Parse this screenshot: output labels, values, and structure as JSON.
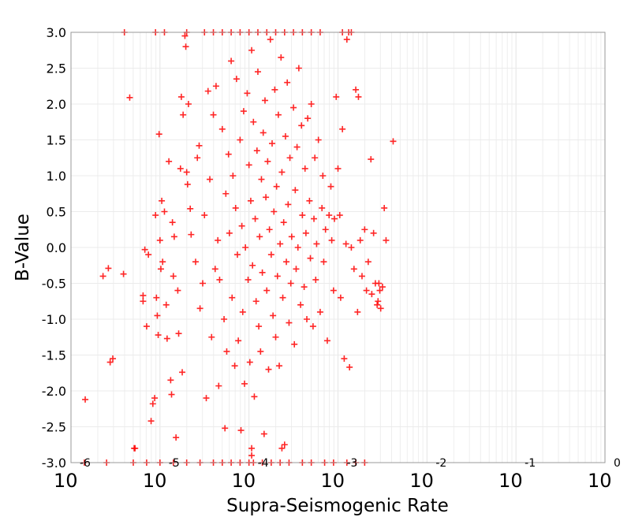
{
  "chart_data": {
    "type": "scatter",
    "xlabel": "Supra-Seismogenic Rate",
    "ylabel": "B-Value",
    "xscale": "log",
    "xlim": [
      1e-06,
      1
    ],
    "ylim": [
      -3.0,
      3.0
    ],
    "grid": true,
    "x_tick_exponents": [
      "-6",
      "-5",
      "-4",
      "-3",
      "-2",
      "-1",
      "0"
    ],
    "x_tick_base": "10",
    "y_ticks": [
      "3.0",
      "2.5",
      "2.0",
      "1.5",
      "1.0",
      "0.5",
      "0.0",
      "-0.5",
      "-1.0",
      "-1.5",
      "-2.0",
      "-2.5",
      "-3.0"
    ],
    "marker": "plus",
    "color": "#ff0000",
    "series": [
      {
        "name": "points",
        "note": "points given as [log10(x), y]",
        "points": [
          [
            -5.84,
            -2.12
          ],
          [
            -5.64,
            -0.4
          ],
          [
            -5.58,
            -0.29
          ],
          [
            -5.56,
            -1.6
          ],
          [
            -5.53,
            -1.55
          ],
          [
            -5.41,
            -0.37
          ],
          [
            -5.34,
            2.09
          ],
          [
            -5.28,
            -2.8
          ],
          [
            -5.19,
            -0.67
          ],
          [
            -5.19,
            -0.75
          ],
          [
            -5.17,
            -0.03
          ],
          [
            -5.15,
            -1.1
          ],
          [
            -5.13,
            -0.1
          ],
          [
            -5.1,
            -2.42
          ],
          [
            -5.08,
            -2.18
          ],
          [
            -5.06,
            -2.1
          ],
          [
            -5.05,
            0.45
          ],
          [
            -5.04,
            -0.7
          ],
          [
            -5.03,
            -0.95
          ],
          [
            -5.02,
            -1.22
          ],
          [
            -5.01,
            1.58
          ],
          [
            -5.0,
            0.1
          ],
          [
            -4.99,
            -0.3
          ],
          [
            -4.98,
            0.65
          ],
          [
            -4.97,
            -0.2
          ],
          [
            -4.95,
            0.5
          ],
          [
            -4.93,
            -0.8
          ],
          [
            -4.92,
            -1.27
          ],
          [
            -4.9,
            1.2
          ],
          [
            -4.88,
            -1.85
          ],
          [
            -4.87,
            -2.05
          ],
          [
            -4.86,
            0.35
          ],
          [
            -4.85,
            -0.4
          ],
          [
            -4.84,
            0.15
          ],
          [
            -4.82,
            -2.65
          ],
          [
            -4.8,
            -0.6
          ],
          [
            -4.79,
            -1.2
          ],
          [
            -4.77,
            1.1
          ],
          [
            -4.76,
            2.1
          ],
          [
            -4.75,
            -1.74
          ],
          [
            -4.74,
            1.85
          ],
          [
            -4.72,
            2.95
          ],
          [
            -4.71,
            2.8
          ],
          [
            -4.7,
            1.05
          ],
          [
            -4.69,
            0.88
          ],
          [
            -4.68,
            2.0
          ],
          [
            -4.66,
            0.54
          ],
          [
            -4.65,
            0.18
          ],
          [
            -4.6,
            -0.2
          ],
          [
            -4.58,
            1.25
          ],
          [
            -4.56,
            1.42
          ],
          [
            -4.55,
            -0.85
          ],
          [
            -4.52,
            -0.5
          ],
          [
            -4.5,
            0.45
          ],
          [
            -4.48,
            -2.1
          ],
          [
            -4.46,
            2.18
          ],
          [
            -4.44,
            0.95
          ],
          [
            -4.42,
            -1.25
          ],
          [
            -4.4,
            1.85
          ],
          [
            -4.38,
            -0.3
          ],
          [
            -4.37,
            2.25
          ],
          [
            -4.35,
            0.1
          ],
          [
            -4.34,
            -1.93
          ],
          [
            -4.33,
            -0.45
          ],
          [
            -4.3,
            1.65
          ],
          [
            -4.28,
            -1.0
          ],
          [
            -4.27,
            -2.52
          ],
          [
            -4.26,
            0.75
          ],
          [
            -4.25,
            -1.45
          ],
          [
            -4.23,
            1.3
          ],
          [
            -4.22,
            0.2
          ],
          [
            -4.2,
            2.6
          ],
          [
            -4.19,
            -0.7
          ],
          [
            -4.18,
            1.0
          ],
          [
            -4.16,
            -1.65
          ],
          [
            -4.15,
            0.55
          ],
          [
            -4.14,
            2.35
          ],
          [
            -4.13,
            -0.1
          ],
          [
            -4.12,
            -1.3
          ],
          [
            -4.1,
            1.5
          ],
          [
            -4.09,
            -2.55
          ],
          [
            -4.08,
            0.3
          ],
          [
            -4.07,
            -0.9
          ],
          [
            -4.06,
            1.9
          ],
          [
            -4.05,
            -1.9
          ],
          [
            -4.04,
            0.0
          ],
          [
            -4.02,
            2.15
          ],
          [
            -4.01,
            -0.45
          ],
          [
            -4.0,
            1.15
          ],
          [
            -3.99,
            -1.6
          ],
          [
            -3.98,
            0.65
          ],
          [
            -3.97,
            2.75
          ],
          [
            -3.96,
            -0.25
          ],
          [
            -3.95,
            1.75
          ],
          [
            -3.94,
            -2.08
          ],
          [
            -3.93,
            0.4
          ],
          [
            -3.92,
            -0.75
          ],
          [
            -3.91,
            1.35
          ],
          [
            -3.9,
            2.45
          ],
          [
            -3.89,
            -1.1
          ],
          [
            -3.88,
            0.15
          ],
          [
            -3.87,
            -1.45
          ],
          [
            -3.86,
            0.95
          ],
          [
            -3.85,
            -0.35
          ],
          [
            -3.84,
            1.6
          ],
          [
            -3.83,
            -2.6
          ],
          [
            -3.82,
            2.05
          ],
          [
            -3.81,
            0.7
          ],
          [
            -3.8,
            -0.6
          ],
          [
            -3.79,
            1.2
          ],
          [
            -3.78,
            -1.7
          ],
          [
            -3.77,
            0.25
          ],
          [
            -3.76,
            2.9
          ],
          [
            -3.75,
            -0.1
          ],
          [
            -3.74,
            1.45
          ],
          [
            -3.73,
            -0.95
          ],
          [
            -3.72,
            0.5
          ],
          [
            -3.71,
            2.2
          ],
          [
            -3.7,
            -1.25
          ],
          [
            -3.69,
            0.85
          ],
          [
            -3.68,
            -0.4
          ],
          [
            -3.67,
            1.85
          ],
          [
            -3.66,
            -1.65
          ],
          [
            -3.65,
            0.05
          ],
          [
            -3.64,
            2.65
          ],
          [
            -3.63,
            1.05
          ],
          [
            -3.62,
            -0.7
          ],
          [
            -3.61,
            0.35
          ],
          [
            -3.6,
            -2.75
          ],
          [
            -3.59,
            1.55
          ],
          [
            -3.58,
            -0.2
          ],
          [
            -3.57,
            2.3
          ],
          [
            -3.56,
            0.6
          ],
          [
            -3.55,
            -1.05
          ],
          [
            -3.54,
            1.25
          ],
          [
            -3.53,
            -0.5
          ],
          [
            -3.52,
            0.15
          ],
          [
            -3.5,
            1.95
          ],
          [
            -3.49,
            -1.35
          ],
          [
            -3.48,
            0.8
          ],
          [
            -3.47,
            -0.3
          ],
          [
            -3.46,
            1.4
          ],
          [
            -3.45,
            0.0
          ],
          [
            -3.44,
            2.5
          ],
          [
            -3.42,
            -0.8
          ],
          [
            -3.41,
            1.7
          ],
          [
            -3.4,
            0.45
          ],
          [
            -3.38,
            -0.55
          ],
          [
            -3.37,
            1.1
          ],
          [
            -3.36,
            0.2
          ],
          [
            -3.35,
            -1.0
          ],
          [
            -3.34,
            1.8
          ],
          [
            -3.32,
            0.65
          ],
          [
            -3.31,
            -0.15
          ],
          [
            -3.3,
            2.0
          ],
          [
            -3.28,
            -1.1
          ],
          [
            -3.27,
            0.4
          ],
          [
            -3.26,
            1.25
          ],
          [
            -3.25,
            -0.45
          ],
          [
            -3.24,
            0.05
          ],
          [
            -3.22,
            1.5
          ],
          [
            -3.2,
            -0.9
          ],
          [
            -3.18,
            0.55
          ],
          [
            -3.17,
            1.0
          ],
          [
            -3.16,
            -0.2
          ],
          [
            -3.14,
            0.25
          ],
          [
            -3.12,
            -1.3
          ],
          [
            -3.1,
            0.45
          ],
          [
            -3.08,
            0.85
          ],
          [
            -3.07,
            0.1
          ],
          [
            -3.05,
            -0.6
          ],
          [
            -3.04,
            0.4
          ],
          [
            -3.02,
            2.1
          ],
          [
            -3.0,
            1.1
          ],
          [
            -2.98,
            0.45
          ],
          [
            -2.97,
            -0.7
          ],
          [
            -2.95,
            1.65
          ],
          [
            -2.93,
            -1.55
          ],
          [
            -2.91,
            0.05
          ],
          [
            -2.9,
            2.9
          ],
          [
            -2.87,
            -1.67
          ],
          [
            -2.85,
            0.0
          ],
          [
            -2.82,
            -0.3
          ],
          [
            -2.8,
            2.2
          ],
          [
            -2.78,
            -0.9
          ],
          [
            -2.77,
            2.1
          ],
          [
            -2.75,
            0.1
          ],
          [
            -2.73,
            -0.4
          ],
          [
            -2.7,
            0.25
          ],
          [
            -2.68,
            -0.6
          ],
          [
            -2.66,
            -0.2
          ],
          [
            -2.63,
            1.23
          ],
          [
            -2.62,
            -0.65
          ],
          [
            -2.6,
            0.2
          ],
          [
            -2.58,
            -0.5
          ],
          [
            -2.56,
            -0.8
          ],
          [
            -2.55,
            -0.75
          ],
          [
            -2.54,
            -0.5
          ],
          [
            -2.53,
            -0.6
          ],
          [
            -2.52,
            -0.85
          ],
          [
            -2.5,
            -0.55
          ],
          [
            -2.48,
            0.55
          ],
          [
            -2.46,
            0.1
          ],
          [
            -2.38,
            1.48
          ],
          [
            -5.85,
            -3.0
          ],
          [
            -5.6,
            -3.0
          ],
          [
            -5.3,
            -3.0
          ],
          [
            -5.15,
            -3.0
          ],
          [
            -5.0,
            -3.0
          ],
          [
            -4.85,
            -3.0
          ],
          [
            -4.7,
            -3.0
          ],
          [
            -4.55,
            -3.0
          ],
          [
            -4.4,
            -3.0
          ],
          [
            -4.3,
            -3.0
          ],
          [
            -4.2,
            -3.0
          ],
          [
            -4.1,
            -3.0
          ],
          [
            -4.0,
            -3.0
          ],
          [
            -3.95,
            -3.0
          ],
          [
            -3.85,
            -3.0
          ],
          [
            -3.75,
            -3.0
          ],
          [
            -3.65,
            -3.0
          ],
          [
            -3.55,
            -3.0
          ],
          [
            -3.4,
            -3.0
          ],
          [
            -3.3,
            -3.0
          ],
          [
            -3.15,
            -3.0
          ],
          [
            -3.05,
            -3.0
          ],
          [
            -2.9,
            -3.0
          ],
          [
            -2.8,
            -3.0
          ],
          [
            -2.7,
            -3.0
          ],
          [
            -3.97,
            -2.9
          ],
          [
            -3.97,
            -2.8
          ],
          [
            -3.63,
            -2.8
          ],
          [
            -5.29,
            -2.8
          ],
          [
            -5.4,
            3.0
          ],
          [
            -5.05,
            3.0
          ],
          [
            -4.95,
            3.0
          ],
          [
            -4.7,
            3.0
          ],
          [
            -4.5,
            3.0
          ],
          [
            -4.4,
            3.0
          ],
          [
            -4.3,
            3.0
          ],
          [
            -4.2,
            3.0
          ],
          [
            -4.1,
            3.0
          ],
          [
            -4.0,
            3.0
          ],
          [
            -3.9,
            3.0
          ],
          [
            -3.8,
            3.0
          ],
          [
            -3.7,
            3.0
          ],
          [
            -3.6,
            3.0
          ],
          [
            -3.5,
            3.0
          ],
          [
            -3.4,
            3.0
          ],
          [
            -3.3,
            3.0
          ],
          [
            -3.2,
            3.0
          ],
          [
            -2.95,
            3.0
          ],
          [
            -2.88,
            3.0
          ],
          [
            -2.85,
            3.0
          ]
        ]
      }
    ]
  }
}
